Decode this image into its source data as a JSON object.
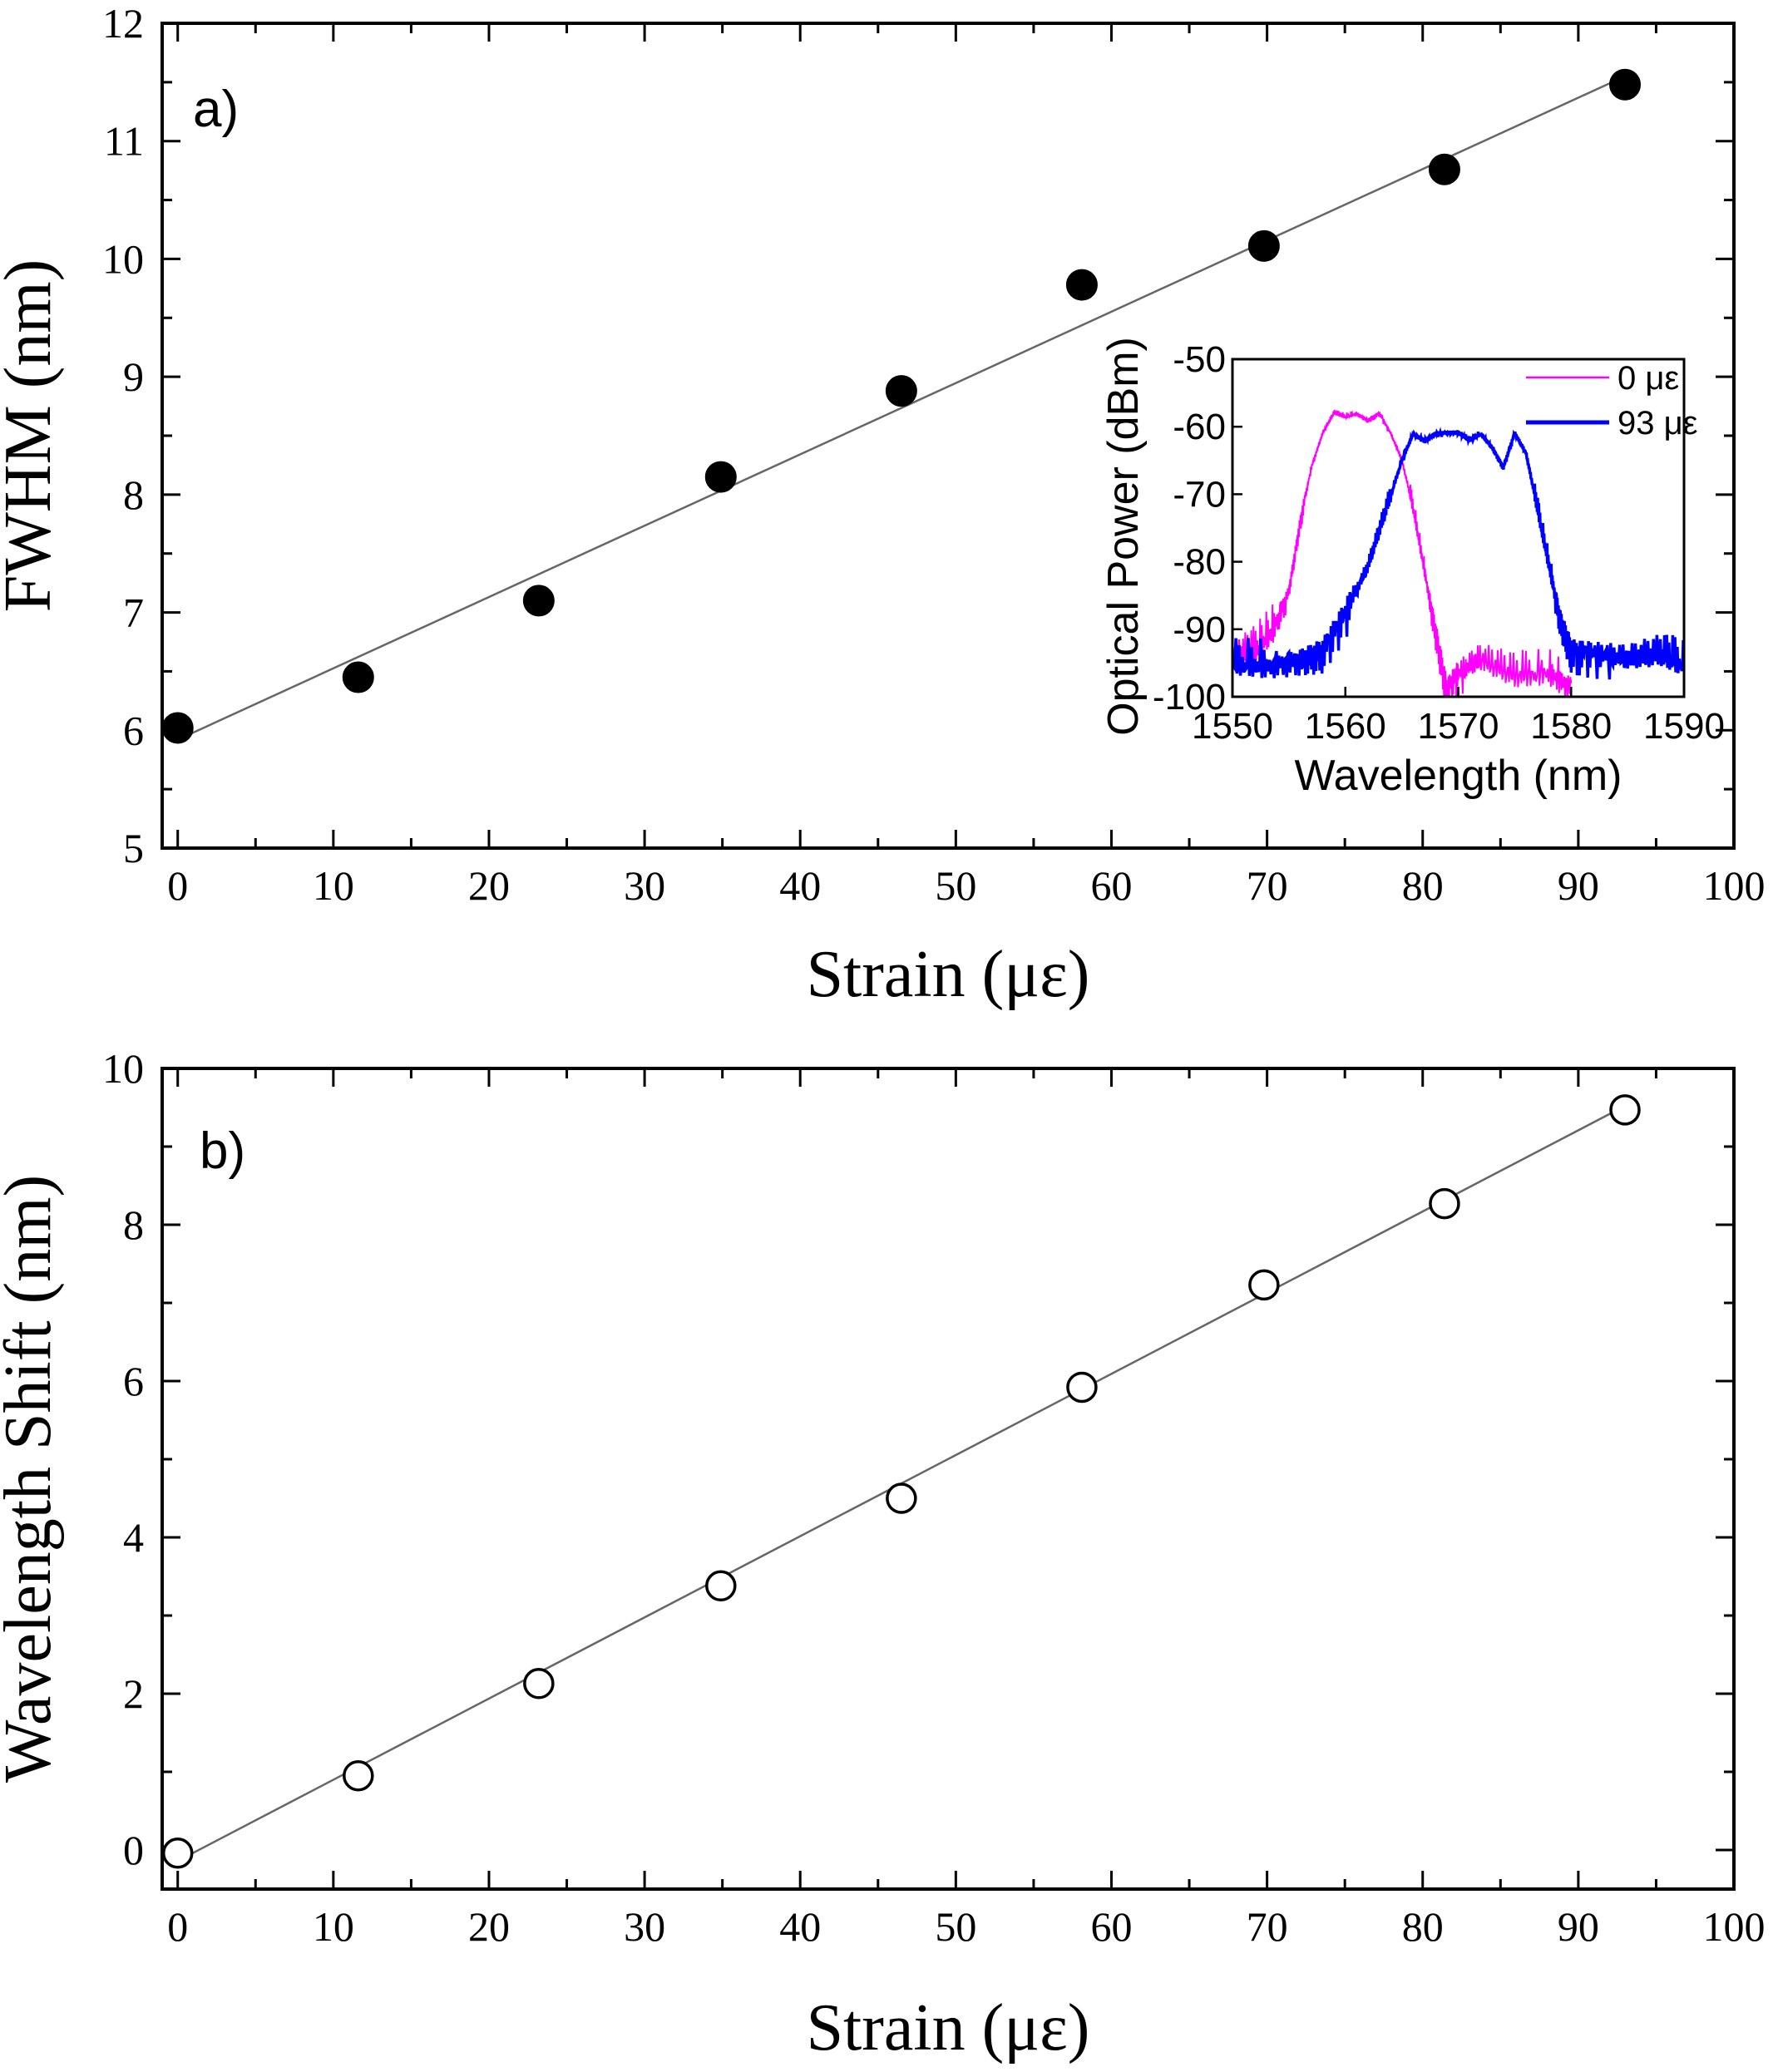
{
  "chart_data": [
    {
      "id": "a",
      "type": "scatter",
      "panel_label": "a)",
      "xlabel": "Strain (με)",
      "ylabel": "FWHM (nm)",
      "xlim": [
        -1,
        100
      ],
      "ylim": [
        5,
        12
      ],
      "xticks": [
        0,
        10,
        20,
        30,
        40,
        50,
        60,
        70,
        80,
        90,
        100
      ],
      "yticks": [
        5,
        6,
        7,
        8,
        9,
        10,
        11,
        12
      ],
      "grid": false,
      "marker": "filled-circle",
      "series": [
        {
          "name": "FWHM",
          "x": [
            0,
            11.6,
            23.2,
            34.9,
            46.5,
            58.1,
            69.8,
            81.4,
            93.0
          ],
          "y": [
            6.02,
            6.45,
            7.1,
            8.15,
            8.88,
            9.78,
            10.11,
            10.76,
            11.48
          ]
        }
      ],
      "fit_line": {
        "x": [
          0,
          93
        ],
        "y": [
          5.92,
          11.55
        ]
      },
      "inset": {
        "type": "line",
        "xlabel": "Wavelength (nm)",
        "ylabel": "Optical Power (dBm)",
        "xlim": [
          1550,
          1590
        ],
        "ylim": [
          -100,
          -50
        ],
        "xticks": [
          1550,
          1560,
          1570,
          1580,
          1590
        ],
        "yticks": [
          -100,
          -90,
          -80,
          -70,
          -60,
          -50
        ],
        "legend_position": "top-right",
        "series": [
          {
            "name": "0 με",
            "color": "#ff00ff",
            "points": [
              [
                1550,
                -95
              ],
              [
                1552,
                -93
              ],
              [
                1553.5,
                -90
              ],
              [
                1555,
                -84
              ],
              [
                1556,
                -74
              ],
              [
                1557,
                -66
              ],
              [
                1558,
                -61
              ],
              [
                1559,
                -58
              ],
              [
                1560,
                -58.5
              ],
              [
                1561,
                -58
              ],
              [
                1562,
                -59
              ],
              [
                1563,
                -58
              ],
              [
                1564,
                -61
              ],
              [
                1565,
                -65
              ],
              [
                1566,
                -72
              ],
              [
                1567,
                -81
              ],
              [
                1568,
                -90
              ],
              [
                1569,
                -99
              ],
              [
                1570,
                -97
              ],
              [
                1572,
                -95
              ],
              [
                1575,
                -97
              ],
              [
                1578,
                -96
              ],
              [
                1580,
                -98
              ]
            ]
          },
          {
            "name": "93 με",
            "color": "#0000ff",
            "points": [
              [
                1550,
                -95
              ],
              [
                1553,
                -95
              ],
              [
                1556,
                -94
              ],
              [
                1558,
                -93
              ],
              [
                1560,
                -88
              ],
              [
                1562,
                -81
              ],
              [
                1563.5,
                -73
              ],
              [
                1565,
                -65
              ],
              [
                1566,
                -61
              ],
              [
                1567,
                -62
              ],
              [
                1568,
                -61
              ],
              [
                1569,
                -61
              ],
              [
                1570,
                -61
              ],
              [
                1571,
                -62
              ],
              [
                1572,
                -61
              ],
              [
                1573,
                -63
              ],
              [
                1574,
                -66
              ],
              [
                1575,
                -61
              ],
              [
                1576,
                -64
              ],
              [
                1577,
                -72
              ],
              [
                1578,
                -80
              ],
              [
                1579,
                -88
              ],
              [
                1580,
                -93
              ],
              [
                1582,
                -94
              ],
              [
                1585,
                -95
              ],
              [
                1588,
                -94
              ],
              [
                1590,
                -95
              ]
            ]
          }
        ]
      }
    },
    {
      "id": "b",
      "type": "scatter",
      "panel_label": "b)",
      "xlabel": "Strain (με)",
      "ylabel": "Wavelength Shift (nm)",
      "xlim": [
        -1,
        100
      ],
      "ylim": [
        -0.5,
        10
      ],
      "xticks": [
        0,
        10,
        20,
        30,
        40,
        50,
        60,
        70,
        80,
        90,
        100
      ],
      "yticks": [
        0,
        2,
        4,
        6,
        8,
        10
      ],
      "grid": false,
      "marker": "open-circle",
      "series": [
        {
          "name": "Wavelength Shift",
          "x": [
            0,
            11.6,
            23.2,
            34.9,
            46.5,
            58.1,
            69.8,
            81.4,
            93.0
          ],
          "y": [
            -0.04,
            0.95,
            2.13,
            3.38,
            4.5,
            5.92,
            7.23,
            8.27,
            9.47
          ]
        }
      ],
      "fit_line": {
        "x": [
          0,
          93
        ],
        "y": [
          -0.14,
          9.52
        ]
      }
    }
  ]
}
